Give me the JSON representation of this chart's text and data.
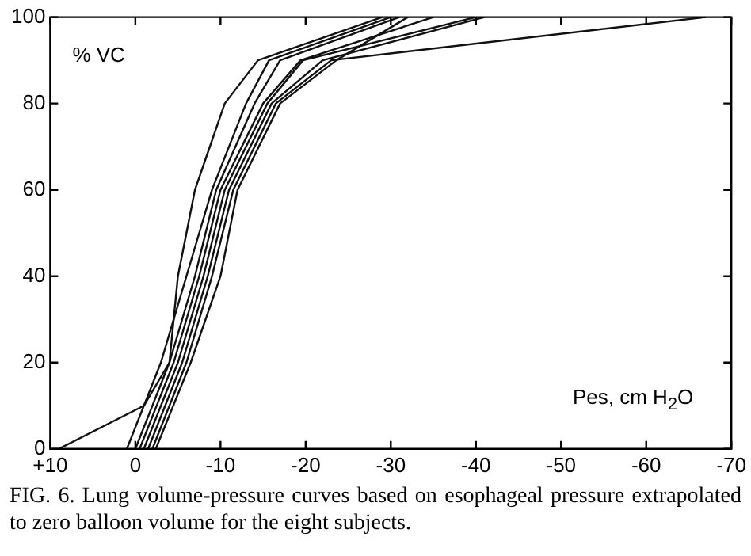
{
  "chart_data": {
    "type": "line",
    "xlabel": "Pes, cm H$_{2}$O",
    "ylabel": "% VC",
    "annotations": [
      "FIG. 6. Lung volume-pressure curves based on esophageal pressure extrapolated to zero balloon volume for the eight subjects."
    ],
    "xlim": [
      10,
      -70
    ],
    "xticks": [
      {
        "value": 10,
        "label": "+10"
      },
      0,
      -10,
      -20,
      -30,
      -40,
      -50,
      -60,
      -70
    ],
    "ylim": [
      0,
      100
    ],
    "yticks": [
      0,
      20,
      40,
      60,
      80,
      100
    ],
    "grid": false,
    "legend": false,
    "marker": "none",
    "line_style": "solid",
    "series": [
      {
        "color": "#111111",
        "x": [
          9,
          -1,
          -4,
          -5,
          -7,
          -10.5,
          -14.4,
          -29
        ],
        "values": [
          0,
          10,
          20,
          40,
          60,
          80,
          90,
          100
        ]
      },
      {
        "color": "#111111",
        "x": [
          1,
          -3,
          -6,
          -9,
          -13,
          -15.7,
          -30
        ],
        "values": [
          0,
          20,
          40,
          60,
          80,
          90,
          100
        ]
      },
      {
        "color": "#111111",
        "x": [
          0,
          -4,
          -7,
          -9.5,
          -14,
          -17,
          -31
        ],
        "values": [
          0,
          20,
          40,
          60,
          80,
          90,
          100
        ]
      },
      {
        "color": "#111111",
        "x": [
          -0.5,
          -4.5,
          -7.5,
          -10,
          -15,
          -19.4,
          -35
        ],
        "values": [
          0,
          20,
          40,
          60,
          80,
          90,
          100
        ]
      },
      {
        "color": "#111111",
        "x": [
          -1,
          -5,
          -8,
          -10.5,
          -15.5,
          -19.7,
          -40
        ],
        "values": [
          0,
          20,
          40,
          60,
          80,
          90,
          100
        ]
      },
      {
        "color": "#111111",
        "x": [
          -1.5,
          -5.5,
          -8.5,
          -11,
          -16,
          -22,
          -41
        ],
        "values": [
          0,
          20,
          40,
          60,
          80,
          90,
          100
        ]
      },
      {
        "color": "#111111",
        "x": [
          -2,
          -6,
          -9,
          -11.5,
          -16.5,
          -23,
          -67
        ],
        "values": [
          0,
          20,
          40,
          60,
          80,
          90,
          100
        ]
      },
      {
        "color": "#111111",
        "x": [
          -2.4,
          -6.5,
          -10,
          -12,
          -17,
          -23.6,
          -32
        ],
        "values": [
          0,
          20,
          40,
          60,
          80,
          90,
          100
        ]
      }
    ]
  }
}
